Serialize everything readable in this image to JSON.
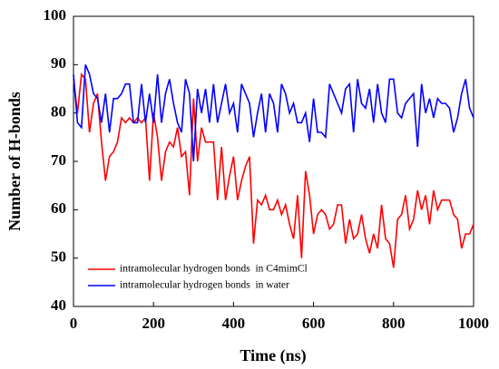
{
  "chart_data": {
    "type": "line",
    "xlabel": "Time (ns)",
    "ylabel": "Number of H-bonds",
    "x": [
      0,
      10,
      20,
      30,
      40,
      50,
      60,
      70,
      80,
      90,
      100,
      110,
      120,
      130,
      140,
      150,
      160,
      170,
      180,
      190,
      200,
      210,
      220,
      230,
      240,
      250,
      260,
      270,
      280,
      290,
      300,
      310,
      320,
      330,
      340,
      350,
      360,
      370,
      380,
      390,
      400,
      410,
      420,
      430,
      440,
      450,
      460,
      470,
      480,
      490,
      500,
      510,
      520,
      530,
      540,
      550,
      560,
      570,
      580,
      590,
      600,
      610,
      620,
      630,
      640,
      650,
      660,
      670,
      680,
      690,
      700,
      710,
      720,
      730,
      740,
      750,
      760,
      770,
      780,
      790,
      800,
      810,
      820,
      830,
      840,
      850,
      860,
      870,
      880,
      890,
      900,
      910,
      920,
      930,
      940,
      950,
      960,
      970,
      980,
      990,
      1000
    ],
    "series": [
      {
        "name": "intramolecular hydrogen bonds  in C4mimCl",
        "color": "#ff0000",
        "values": [
          87,
          80,
          88,
          87,
          76,
          82,
          84,
          74,
          66,
          71,
          72,
          74,
          79,
          78,
          79,
          78,
          79,
          78,
          79,
          66,
          80,
          75,
          66,
          72,
          74,
          73,
          77,
          71,
          72,
          63,
          83,
          70,
          77,
          74,
          74,
          74,
          62,
          73,
          62,
          67,
          71,
          62,
          66,
          69,
          71,
          53,
          62,
          61,
          63,
          60,
          60,
          62,
          59,
          61,
          57,
          54,
          63,
          50,
          68,
          63,
          55,
          59,
          60,
          59,
          56,
          57,
          61,
          61,
          53,
          58,
          54,
          55,
          59,
          54,
          51,
          55,
          52,
          61,
          54,
          53,
          48,
          58,
          59,
          63,
          56,
          58,
          64,
          60,
          63,
          57,
          64,
          60,
          62,
          62,
          62,
          59,
          58,
          52,
          55,
          55,
          57
        ]
      },
      {
        "name": "intramolecular hydrogen bonds  in water",
        "color": "#0000ff",
        "values": [
          88,
          78,
          77,
          90,
          88,
          84,
          83,
          78,
          84,
          76,
          83,
          83,
          84,
          86,
          86,
          78,
          78,
          86,
          78,
          84,
          78,
          88,
          78,
          84,
          87,
          82,
          78,
          76,
          87,
          84,
          70,
          85,
          80,
          85,
          78,
          86,
          78,
          82,
          86,
          80,
          82,
          76,
          86,
          84,
          82,
          75,
          80,
          84,
          76,
          84,
          82,
          76,
          86,
          84,
          80,
          82,
          78,
          78,
          80,
          74,
          83,
          76,
          76,
          75,
          86,
          84,
          82,
          80,
          85,
          86,
          76,
          87,
          82,
          81,
          85,
          78,
          86,
          80,
          78,
          87,
          87,
          80,
          79,
          82,
          83,
          84,
          73,
          86,
          80,
          83,
          79,
          83,
          82,
          82,
          81,
          76,
          79,
          84,
          87,
          81,
          79
        ]
      }
    ],
    "xlim": [
      0,
      1000
    ],
    "xticks": [
      0,
      200,
      400,
      600,
      800,
      1000
    ],
    "ylim": [
      40,
      100
    ],
    "yticks": [
      40,
      50,
      60,
      70,
      80,
      90,
      100
    ],
    "legend": "lower left"
  }
}
